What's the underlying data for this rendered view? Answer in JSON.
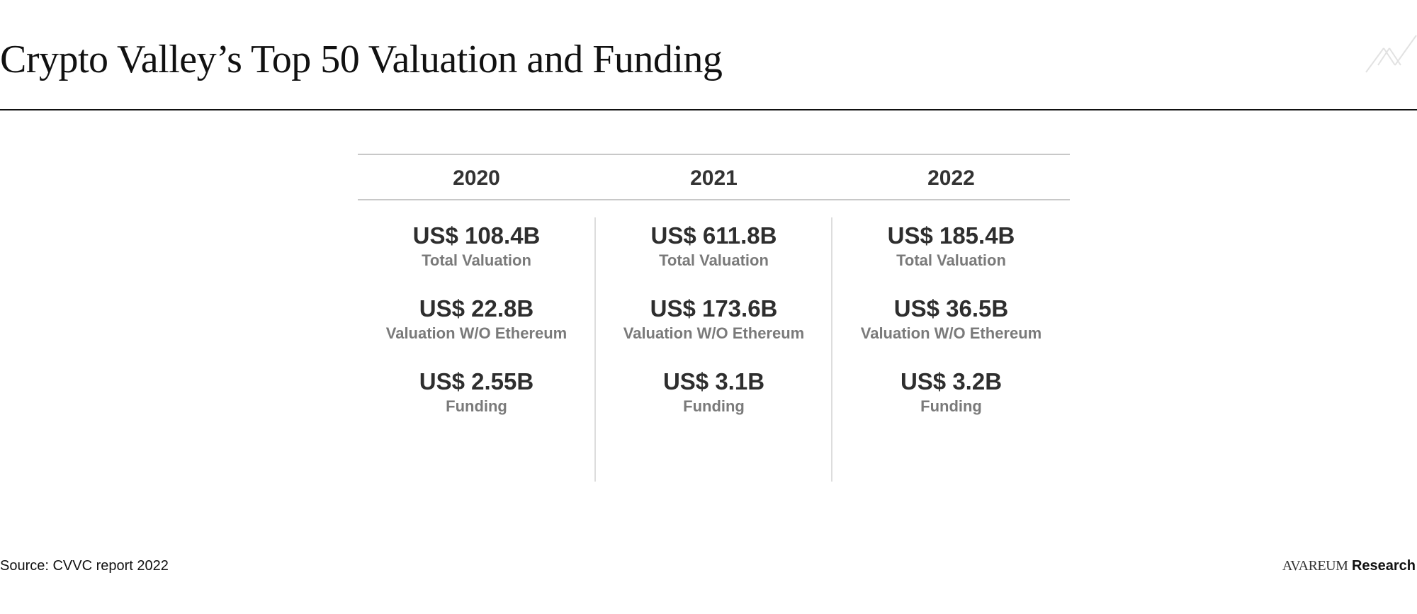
{
  "header": {
    "title": "Crypto Valley’s Top 50 Valuation and Funding"
  },
  "table": {
    "columns": [
      {
        "year": "2020",
        "rows": [
          {
            "value": "US$ 108.4B",
            "label": "Total Valuation"
          },
          {
            "value": "US$ 22.8B",
            "label": "Valuation W/O Ethereum"
          },
          {
            "value": "US$ 2.55B",
            "label": "Funding"
          }
        ]
      },
      {
        "year": "2021",
        "rows": [
          {
            "value": "US$ 611.8B",
            "label": "Total Valuation"
          },
          {
            "value": "US$ 173.6B",
            "label": "Valuation W/O Ethereum"
          },
          {
            "value": "US$ 3.1B",
            "label": "Funding"
          }
        ]
      },
      {
        "year": "2022",
        "rows": [
          {
            "value": "US$ 185.4B",
            "label": "Total Valuation"
          },
          {
            "value": "US$ 36.5B",
            "label": "Valuation W/O Ethereum"
          },
          {
            "value": "US$ 3.2B",
            "label": "Funding"
          }
        ]
      }
    ]
  },
  "footer": {
    "source": "Source: CVVC report 2022",
    "brand_name": "AVAREUM",
    "brand_suffix": "Research"
  },
  "logo": {
    "icon": "avareum-logo-mark"
  }
}
